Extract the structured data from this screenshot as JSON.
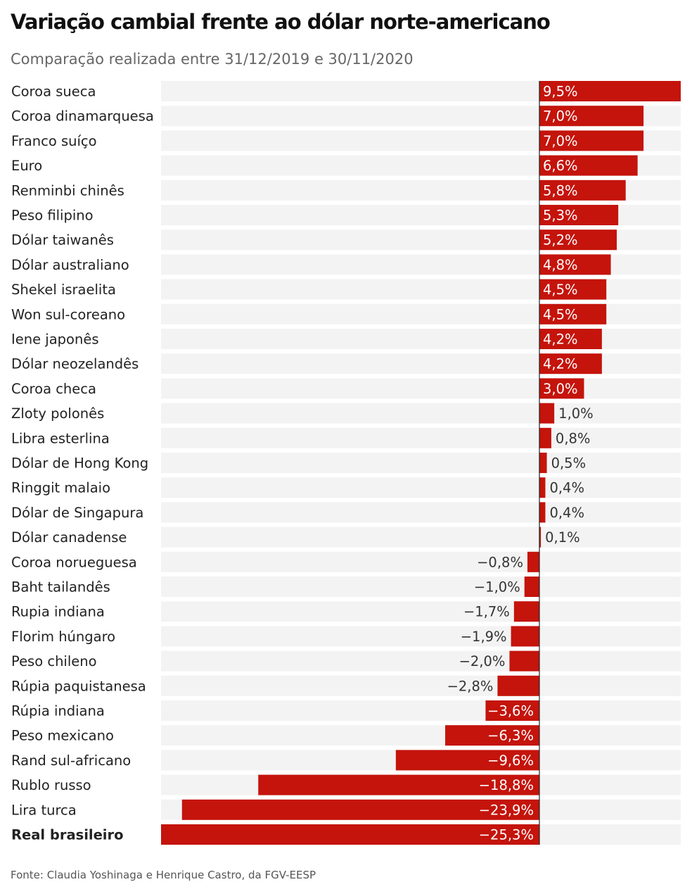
{
  "header": {
    "title": "Variação cambial frente ao dólar norte-americano",
    "subtitle": "Comparação realizada entre 31/12/2019 e 30/11/2020"
  },
  "footer": {
    "source": "Fonte: Claudia Yoshinaga e Henrique Castro, da FGV-EESP"
  },
  "colors": {
    "bar": "#c4140c",
    "track": "#f3f3f3",
    "axis": "#222222",
    "label_inside": "#ffffff",
    "label_outside": "#333333"
  },
  "chart_data": {
    "type": "bar",
    "orientation": "horizontal",
    "title": "Variação cambial frente ao dólar norte-americano",
    "subtitle": "Comparação realizada entre 31/12/2019 e 30/11/2020",
    "xlabel": "",
    "ylabel": "",
    "xlim": [
      -25.3,
      9.5
    ],
    "grid": false,
    "legend": "none",
    "highlight": "Real brasileiro",
    "categories": [
      "Coroa sueca",
      "Coroa dinamarquesa",
      "Franco suíço",
      "Euro",
      "Renminbi chinês",
      "Peso filipino",
      "Dólar taiwanês",
      "Dólar australiano",
      "Shekel israelita",
      "Won sul-coreano",
      "Iene japonês",
      "Dólar neozelandês",
      "Coroa checa",
      "Zloty polonês",
      "Libra esterlina",
      "Dólar de Hong Kong",
      "Ringgit malaio",
      "Dólar de Singapura",
      "Dólar canadense",
      "Coroa norueguesa",
      "Baht tailandês",
      "Rupia indiana",
      "Florim húngaro",
      "Peso chileno",
      "Rúpia paquistanesa",
      "Rúpia indiana",
      "Peso mexicano",
      "Rand sul-africano",
      "Rublo russo",
      "Lira turca",
      "Real brasileiro"
    ],
    "values": [
      9.5,
      7.0,
      7.0,
      6.6,
      5.8,
      5.3,
      5.2,
      4.8,
      4.5,
      4.5,
      4.2,
      4.2,
      3.0,
      1.0,
      0.8,
      0.5,
      0.4,
      0.4,
      0.1,
      -0.8,
      -1.0,
      -1.7,
      -1.9,
      -2.0,
      -2.8,
      -3.6,
      -6.3,
      -9.6,
      -18.8,
      -23.9,
      -25.3
    ],
    "value_labels": [
      "9,5%",
      "7,0%",
      "7,0%",
      "6,6%",
      "5,8%",
      "5,3%",
      "5,2%",
      "4,8%",
      "4,5%",
      "4,5%",
      "4,2%",
      "4,2%",
      "3,0%",
      "1,0%",
      "0,8%",
      "0,5%",
      "0,4%",
      "0,4%",
      "0,1%",
      "−0,8%",
      "−1,0%",
      "−1,7%",
      "−1,9%",
      "−2,0%",
      "−2,8%",
      "−3,6%",
      "−6,3%",
      "−9,6%",
      "−18,8%",
      "−23,9%",
      "−25,3%"
    ]
  }
}
